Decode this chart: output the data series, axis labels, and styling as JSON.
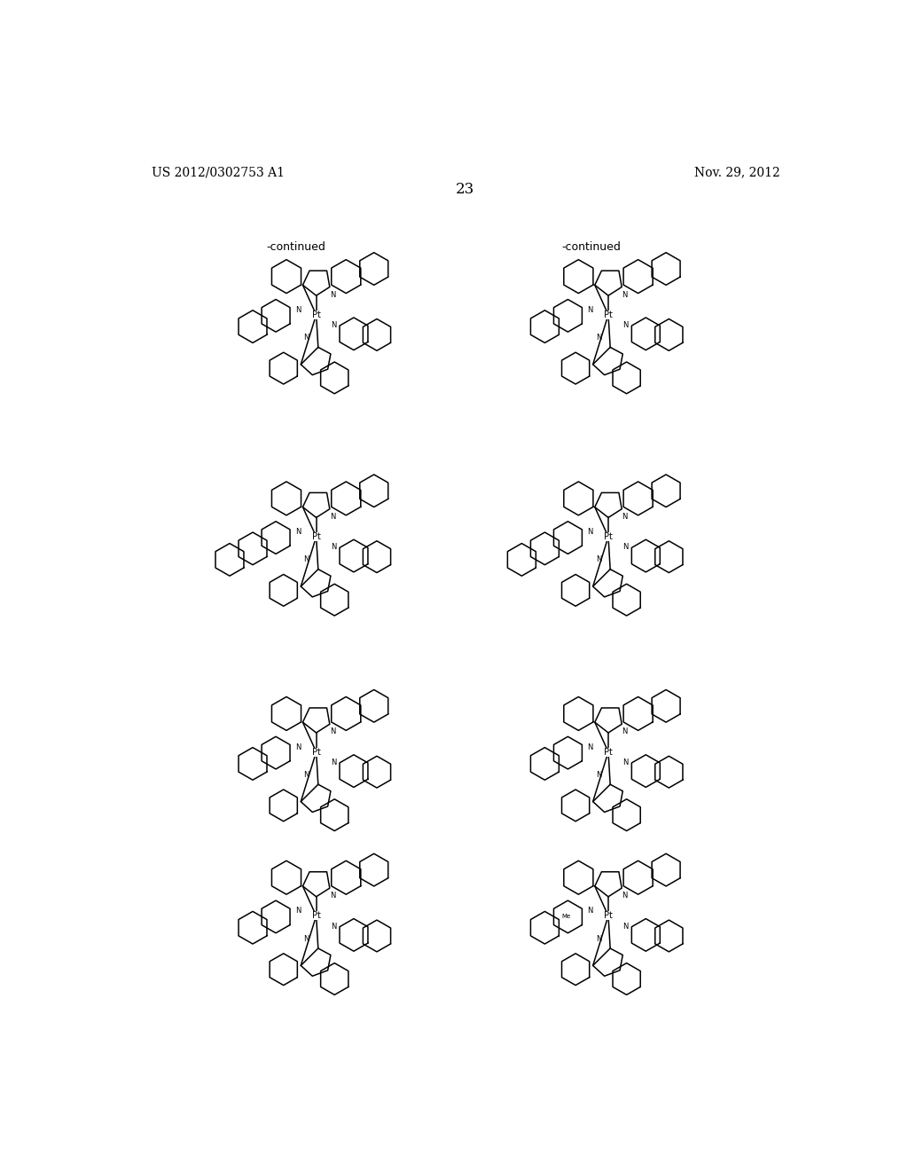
{
  "page_header_left": "US 2012/0302753 A1",
  "page_header_right": "Nov. 29, 2012",
  "page_number": "23",
  "continued_label_1": "-continued",
  "continued_label_2": "-continued",
  "background_color": "#ffffff",
  "text_color": "#000000",
  "line_color": "#000000",
  "font_size_header": 10,
  "font_size_page_num": 12,
  "font_size_continued": 9
}
